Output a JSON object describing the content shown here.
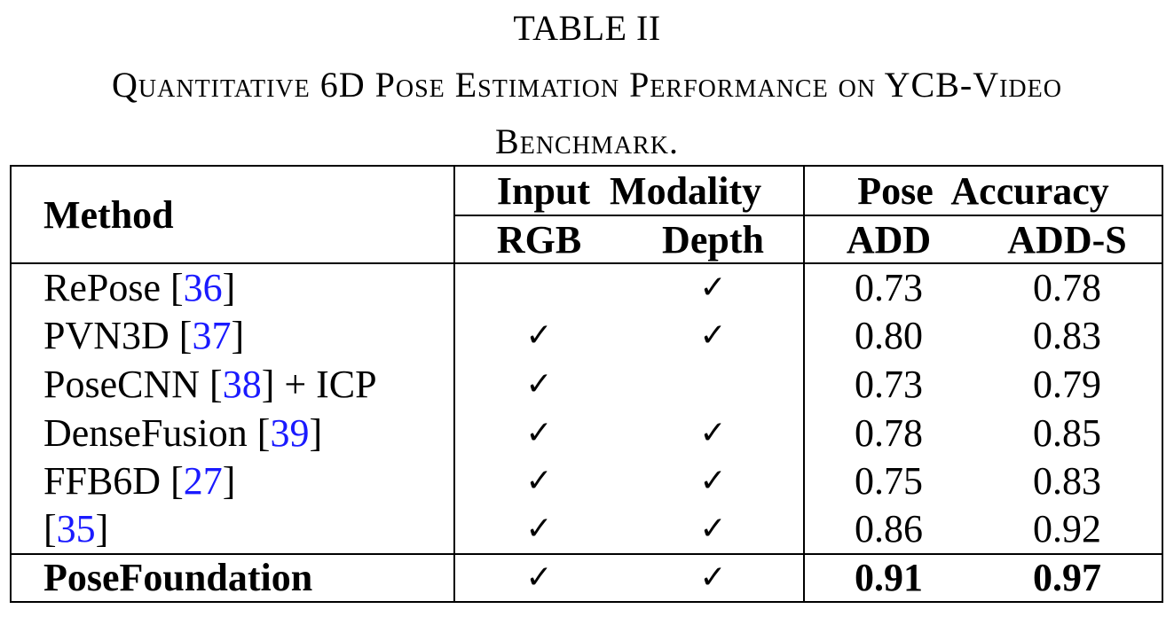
{
  "caption": {
    "label": "TABLE II",
    "title_line1": "Quantitative 6D Pose Estimation Performance on YCB-Video",
    "title_line2": "Benchmark."
  },
  "table": {
    "header": {
      "method": "Method",
      "group_input": "Input  Modality",
      "group_accuracy": "Pose  Accuracy",
      "rgb": "RGB",
      "depth": "Depth",
      "add": "ADD",
      "adds": "ADD-S"
    },
    "check_symbol": "✓",
    "rows": [
      {
        "name": "RePose ",
        "ref": "36",
        "suffix": "]",
        "prefix": "[",
        "rgb": "",
        "depth": "✓",
        "add": "0.73",
        "adds": "0.78"
      },
      {
        "name": "PVN3D ",
        "ref": "37",
        "suffix": "]",
        "prefix": "[",
        "rgb": "✓",
        "depth": "✓",
        "add": "0.80",
        "adds": "0.83"
      },
      {
        "name": "PoseCNN ",
        "ref": "38",
        "suffix": "] + ICP",
        "prefix": "[",
        "rgb": "✓",
        "depth": "",
        "add": "0.73",
        "adds": "0.79"
      },
      {
        "name": "DenseFusion ",
        "ref": "39",
        "suffix": "]",
        "prefix": "[",
        "rgb": "✓",
        "depth": "✓",
        "add": "0.78",
        "adds": "0.85"
      },
      {
        "name": "FFB6D ",
        "ref": "27",
        "suffix": "]",
        "prefix": "[",
        "rgb": "✓",
        "depth": "✓",
        "add": "0.75",
        "adds": "0.83"
      },
      {
        "name": "",
        "ref": "35",
        "suffix": "]",
        "prefix": "[",
        "rgb": "✓",
        "depth": "✓",
        "add": "0.86",
        "adds": "0.92"
      }
    ],
    "final_row": {
      "name": "PoseFoundation",
      "rgb": "✓",
      "depth": "✓",
      "add": "0.91",
      "adds": "0.97"
    }
  }
}
